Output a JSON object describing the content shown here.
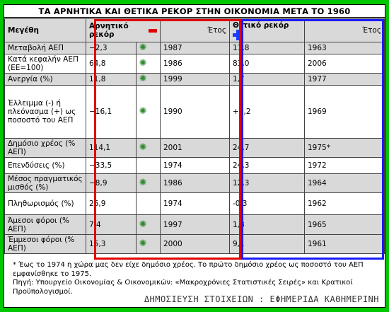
{
  "title": "ΤΑ ΑΡΝΗΤΙΚΑ ΚΑΙ ΘΕΤΙΚΑ ΡΕΚΟΡ ΣΤΗΝ ΟΙΚΟΝΟΜΙΑ ΜΕΤΑ ΤΟ 1960",
  "header": {
    "measure": "Μεγέθη",
    "negative_label": "Αρνητικό ρεκόρ",
    "negative_year": "Έτος",
    "positive_label": "Θετικό ρεκόρ",
    "positive_year": "Έτος"
  },
  "rows": [
    {
      "measure": "Μεταβολή ΑΕΠ",
      "neg": "−2,3",
      "neg_year": "1987",
      "pos": "11,8",
      "pos_year": "1963"
    },
    {
      "measure": "Κατά κεφαλήν ΑΕΠ (ΕΕ=100)",
      "neg": "64,8",
      "neg_year": "1986",
      "pos": "83,0",
      "pos_year": "2006"
    },
    {
      "measure": "Ανεργία (%)",
      "neg": "11,8",
      "neg_year": "1999",
      "pos": "1,7",
      "pos_year": "1977"
    },
    {
      "measure": "Έλλειμμα (-) ή πλεόνασμα (+) ως ποσοστό του ΑΕΠ",
      "neg": "−16,1",
      "neg_year": "1990",
      "pos": "+1,2",
      "pos_year": "1969"
    },
    {
      "measure": "Δημόσιο χρέος (% ΑΕΠ)",
      "neg": "114,1",
      "neg_year": "2001",
      "pos": "24,7",
      "pos_year": "1975*"
    },
    {
      "measure": "Επενδύσεις (%)",
      "neg": "−33,5",
      "neg_year": "1974",
      "pos": "24,3",
      "pos_year": "1972"
    },
    {
      "measure": "Μέσος πραγματικός μισθός (%)",
      "neg": "−8,9",
      "neg_year": "1986",
      "pos": "12,3",
      "pos_year": "1964"
    },
    {
      "measure": "Πληθωρισμός (%)",
      "neg": "26,9",
      "neg_year": "1974",
      "pos": "-0,3",
      "pos_year": "1962"
    },
    {
      "measure": "Άμεσοι φόροι (% ΑΕΠ)",
      "neg": "7,4",
      "neg_year": "1997",
      "pos": "1,8",
      "pos_year": "1965"
    },
    {
      "measure": "Έμμεσοι φόροι (% ΑΕΠ)",
      "neg": "15,3",
      "neg_year": "2000",
      "pos": "9,1",
      "pos_year": "1961"
    }
  ],
  "notes": {
    "footnote": "* Έως το 1974 η χώρα μας δεν είχε δημόσιο χρέος. Το πρώτο δημόσιο χρέος ως ποσοστό του ΑΕΠ εμφανίσθηκε το 1975.",
    "source": "Πηγή: Υπουργείο Οικονομίας & Οικονομικών: «Μακροχρόνιες Στατιστικές Σειρές» και Κρατικοί Προϋπολογισμοί."
  },
  "credit": "ΔΗΜΟΣΙΕΥΣΗ ΣΤΟΙΧΕΙΩΝ : ΕΦΗΜΕΡΙΔΑ ΚΑΘΗΜΕΡΙΝΗ",
  "icons": {
    "negative": "minus-icon",
    "positive": "plus-icon",
    "row_marker": "sun-icon"
  },
  "colors": {
    "background": "#00c800",
    "negative": "#e00000",
    "positive": "#1a1aff",
    "row_marker": "#2e8b2e"
  }
}
